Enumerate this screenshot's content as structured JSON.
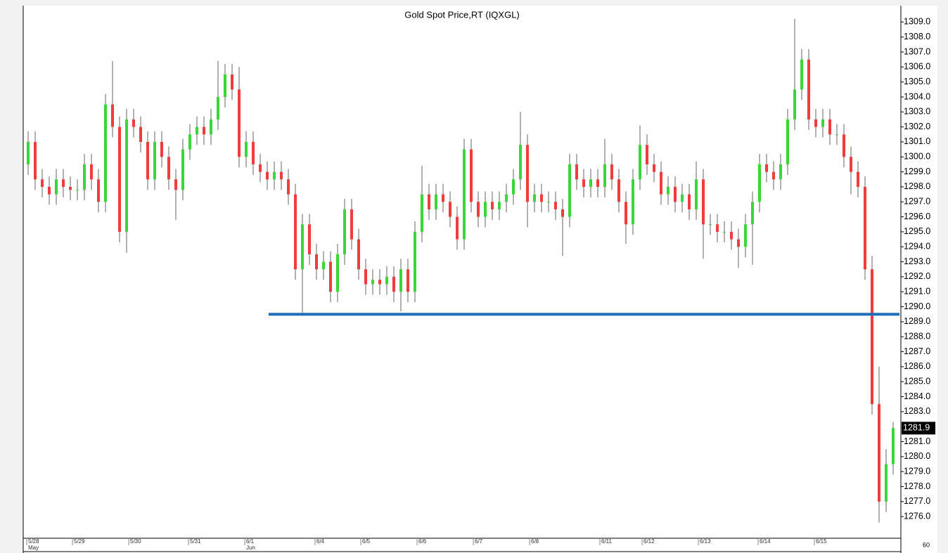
{
  "chart_data": {
    "type": "candlestick",
    "title": "Gold  Spot  Price,RT  (IQXGL)",
    "up_color": "#3ad63a",
    "down_color": "#f03c3c",
    "wick_color": "#666666",
    "candles": {
      "open": [
        1299.5,
        1301,
        1298.5,
        1298,
        1297.5,
        1298.5,
        1298,
        1297.8,
        1297.8,
        1299.5,
        1298.5,
        1297,
        1303.5,
        1302,
        1295,
        1302.5,
        1302,
        1301,
        1298.5,
        1301,
        1300,
        1298.5,
        1297.8,
        1300.5,
        1301.5,
        1302,
        1301.5,
        1302.5,
        1304,
        1305.5,
        1304.5,
        1300,
        1301,
        1299.5,
        1299,
        1298.5,
        1299,
        1298.5,
        1297.5,
        1292.5,
        1295.5,
        1293.5,
        1292.5,
        1293,
        1291,
        1293.5,
        1296.5,
        1294.5,
        1292.5,
        1291.5,
        1291.8,
        1291.5,
        1292,
        1291,
        1292.5,
        1291,
        1295,
        1297.5,
        1296.5,
        1297.5,
        1297,
        1296,
        1294.5,
        1300.5,
        1297,
        1296,
        1297,
        1296.5,
        1297,
        1297.5,
        1298.5,
        1300.8,
        1297,
        1297.5,
        1297,
        1297,
        1296.5,
        1296,
        1299.5,
        1298.5,
        1298,
        1298.5,
        1298,
        1299.5,
        1298.5,
        1297,
        1295.5,
        1298.5,
        1300.8,
        1299.5,
        1299,
        1297.5,
        1298,
        1297,
        1297.5,
        1296.5,
        1298.5,
        1295.5,
        1295.5,
        1295,
        1295,
        1294.5,
        1294,
        1295.5,
        1297,
        1299.5,
        1299,
        1298.5,
        1299.5,
        1302.5,
        1304.5,
        1306.5,
        1302.5,
        1302,
        1302.5,
        1301.5,
        1301.5,
        1300,
        1299,
        1298,
        1292.5,
        1283.5,
        1277,
        1279.5
      ],
      "high": [
        1301.7,
        1301.7,
        1299.2,
        1298.7,
        1299.2,
        1299.2,
        1298.7,
        1298.5,
        1300.2,
        1300.2,
        1299.2,
        1304.2,
        1306.4,
        1302.7,
        1303.2,
        1303.2,
        1302.7,
        1301.7,
        1301.7,
        1301.7,
        1300.7,
        1299.2,
        1301.2,
        1302.2,
        1302.7,
        1302.7,
        1303.2,
        1306.4,
        1306.2,
        1306.2,
        1306.0,
        1301.7,
        1301.7,
        1300.2,
        1299.7,
        1299.7,
        1299.7,
        1299.2,
        1298.2,
        1296.2,
        1296.2,
        1294.2,
        1293.7,
        1293.7,
        1294.2,
        1297.2,
        1297.2,
        1295.2,
        1293.2,
        1292.5,
        1292.5,
        1292.7,
        1292.7,
        1293.2,
        1293.2,
        1295.7,
        1299.4,
        1298.2,
        1298.2,
        1298.2,
        1297.7,
        1296.7,
        1301.2,
        1301.2,
        1297.7,
        1297.7,
        1297.7,
        1297.7,
        1298.2,
        1299.2,
        1303,
        1301.5,
        1298.2,
        1298.2,
        1297.7,
        1297.7,
        1297.2,
        1300.2,
        1300.2,
        1299.2,
        1299.2,
        1299.2,
        1301.2,
        1300.2,
        1299.2,
        1297.7,
        1299.2,
        1302.1,
        1301.5,
        1300.2,
        1299.7,
        1298.7,
        1298.7,
        1298.2,
        1298.2,
        1299.7,
        1299.2,
        1296.2,
        1296.2,
        1295.7,
        1295.7,
        1295.2,
        1296.2,
        1297.7,
        1300.2,
        1300.2,
        1299.7,
        1300.2,
        1303.2,
        1309.2,
        1307.2,
        1307.2,
        1303.2,
        1303.2,
        1303.2,
        1302.2,
        1302.2,
        1300.7,
        1299.7,
        1298.7,
        1293.4,
        1286,
        1280.5,
        1282.3
      ],
      "low": [
        1298.8,
        1297.8,
        1297.3,
        1296.8,
        1296.8,
        1297.3,
        1297.1,
        1297.1,
        1297.1,
        1297.8,
        1296.3,
        1296.3,
        1301.3,
        1294.3,
        1293.6,
        1301.3,
        1300.3,
        1297.8,
        1297.8,
        1299.3,
        1297.8,
        1295.8,
        1297.1,
        1299.8,
        1300.8,
        1300.8,
        1300.8,
        1301.8,
        1303.3,
        1303.8,
        1299.3,
        1299.3,
        1298.8,
        1298.3,
        1297.8,
        1297.8,
        1297.8,
        1296.8,
        1291.8,
        1289.6,
        1292.8,
        1291.8,
        1291.8,
        1290.3,
        1290.3,
        1292.8,
        1293.8,
        1291.8,
        1290.8,
        1290.8,
        1290.8,
        1290.8,
        1290.3,
        1289.7,
        1290.3,
        1290.3,
        1294.3,
        1295.8,
        1295.8,
        1296.3,
        1295.3,
        1293.8,
        1293.8,
        1296.3,
        1295.3,
        1295.3,
        1295.8,
        1295.8,
        1296.3,
        1296.8,
        1297.8,
        1295.3,
        1296.3,
        1296.3,
        1296.3,
        1295.8,
        1293.4,
        1295.3,
        1297.8,
        1297.3,
        1297.3,
        1297.3,
        1297.3,
        1297.8,
        1296.3,
        1294.2,
        1294.8,
        1297.8,
        1298.8,
        1298.3,
        1296.8,
        1296.8,
        1296.3,
        1296.3,
        1295.8,
        1295.8,
        1293.2,
        1294.8,
        1294.3,
        1294.3,
        1293.8,
        1292.6,
        1293.3,
        1292.8,
        1296.3,
        1298.3,
        1297.8,
        1297.8,
        1298.8,
        1301.8,
        1303.8,
        1301.8,
        1301.3,
        1301.3,
        1300.8,
        1300.8,
        1299.3,
        1297.5,
        1297.3,
        1291.8,
        1282.8,
        1275.6,
        1276.3,
        1278.8
      ],
      "close": [
        1301,
        1298.5,
        1298,
        1297.5,
        1298.5,
        1298,
        1297.8,
        1297.8,
        1299.5,
        1298.5,
        1297,
        1303.5,
        1302,
        1295,
        1302.5,
        1302,
        1301,
        1298.5,
        1301,
        1300,
        1298.5,
        1297.8,
        1300.5,
        1301.5,
        1302,
        1301.5,
        1302.5,
        1304,
        1305.5,
        1304.5,
        1300,
        1301,
        1299.5,
        1299,
        1298.5,
        1299,
        1298.5,
        1297.5,
        1292.5,
        1295.5,
        1293.5,
        1292.5,
        1293,
        1291,
        1293.5,
        1296.5,
        1294.5,
        1292.5,
        1291.5,
        1291.8,
        1291.5,
        1292,
        1291,
        1292.5,
        1291,
        1295,
        1297.5,
        1296.5,
        1297.5,
        1297,
        1296,
        1294.5,
        1300.5,
        1297,
        1296,
        1297,
        1296.5,
        1297,
        1297.5,
        1298.5,
        1300.8,
        1297,
        1297.5,
        1297,
        1297,
        1296.5,
        1296,
        1299.5,
        1298.5,
        1298,
        1298.5,
        1298,
        1299.5,
        1298.5,
        1297,
        1295.5,
        1298.5,
        1300.8,
        1299.5,
        1299,
        1297.5,
        1298,
        1297,
        1297.5,
        1296.5,
        1298.5,
        1295.5,
        1295.5,
        1295,
        1295,
        1294.5,
        1294,
        1295.5,
        1297,
        1299.5,
        1299,
        1298.5,
        1299.5,
        1302.5,
        1304.5,
        1306.5,
        1302.5,
        1302,
        1302.5,
        1301.5,
        1301.5,
        1300,
        1299,
        1298,
        1292.5,
        1283.5,
        1277,
        1279.5,
        1281.9
      ]
    },
    "xlim": [
      -0.5,
      123.5
    ],
    "xticks": [
      {
        "value": 0,
        "label": "5/28"
      },
      {
        "value": 6.5,
        "label": "5/29"
      },
      {
        "value": 14.5,
        "label": "5/30"
      },
      {
        "value": 23,
        "label": "5/31"
      },
      {
        "value": 31,
        "label": "6/1"
      },
      {
        "value": 41,
        "label": "6/4"
      },
      {
        "value": 47.5,
        "label": "6/5"
      },
      {
        "value": 55.5,
        "label": "6/6"
      },
      {
        "value": 63.5,
        "label": "6/7"
      },
      {
        "value": 71.5,
        "label": "6/8"
      },
      {
        "value": 81.5,
        "label": "6/11"
      },
      {
        "value": 87.5,
        "label": "6/12"
      },
      {
        "value": 95.5,
        "label": "6/13"
      },
      {
        "value": 104,
        "label": "6/14"
      },
      {
        "value": 112,
        "label": "6/15"
      }
    ],
    "months": [
      {
        "value": 0,
        "label": "May"
      },
      {
        "value": 31,
        "label": "Jun"
      }
    ],
    "ylim": [
      1274.6,
      1310.0
    ],
    "yticks": [
      {
        "value": 1276,
        "label": "1276.0"
      },
      {
        "value": 1277,
        "label": "1277.0"
      },
      {
        "value": 1278,
        "label": "1278.0"
      },
      {
        "value": 1279,
        "label": "1279.0"
      },
      {
        "value": 1280,
        "label": "1280.0"
      },
      {
        "value": 1281,
        "label": "1281.0"
      },
      {
        "value": 1283,
        "label": "1283.0"
      },
      {
        "value": 1284,
        "label": "1284.0"
      },
      {
        "value": 1285,
        "label": "1285.0"
      },
      {
        "value": 1286,
        "label": "1286.0"
      },
      {
        "value": 1287,
        "label": "1287.0"
      },
      {
        "value": 1288,
        "label": "1288.0"
      },
      {
        "value": 1289,
        "label": "1289.0"
      },
      {
        "value": 1290,
        "label": "1290.0"
      },
      {
        "value": 1291,
        "label": "1291.0"
      },
      {
        "value": 1292,
        "label": "1292.0"
      },
      {
        "value": 1293,
        "label": "1293.0"
      },
      {
        "value": 1294,
        "label": "1294.0"
      },
      {
        "value": 1295,
        "label": "1295.0"
      },
      {
        "value": 1296,
        "label": "1296.0"
      },
      {
        "value": 1297,
        "label": "1297.0"
      },
      {
        "value": 1298,
        "label": "1298.0"
      },
      {
        "value": 1299,
        "label": "1299.0"
      },
      {
        "value": 1300,
        "label": "1300.0"
      },
      {
        "value": 1301,
        "label": "1301.0"
      },
      {
        "value": 1302,
        "label": "1302.0"
      },
      {
        "value": 1303,
        "label": "1303.0"
      },
      {
        "value": 1304,
        "label": "1304.0"
      },
      {
        "value": 1305,
        "label": "1305.0"
      },
      {
        "value": 1306,
        "label": "1306.0"
      },
      {
        "value": 1307,
        "label": "1307.0"
      },
      {
        "value": 1308,
        "label": "1308.0"
      },
      {
        "value": 1309,
        "label": "1309.0"
      }
    ],
    "last_price": 1281.9,
    "hline": {
      "value": 1289.5,
      "start": 34.2,
      "color": "#1f6fb8"
    },
    "interval_label": "60"
  }
}
